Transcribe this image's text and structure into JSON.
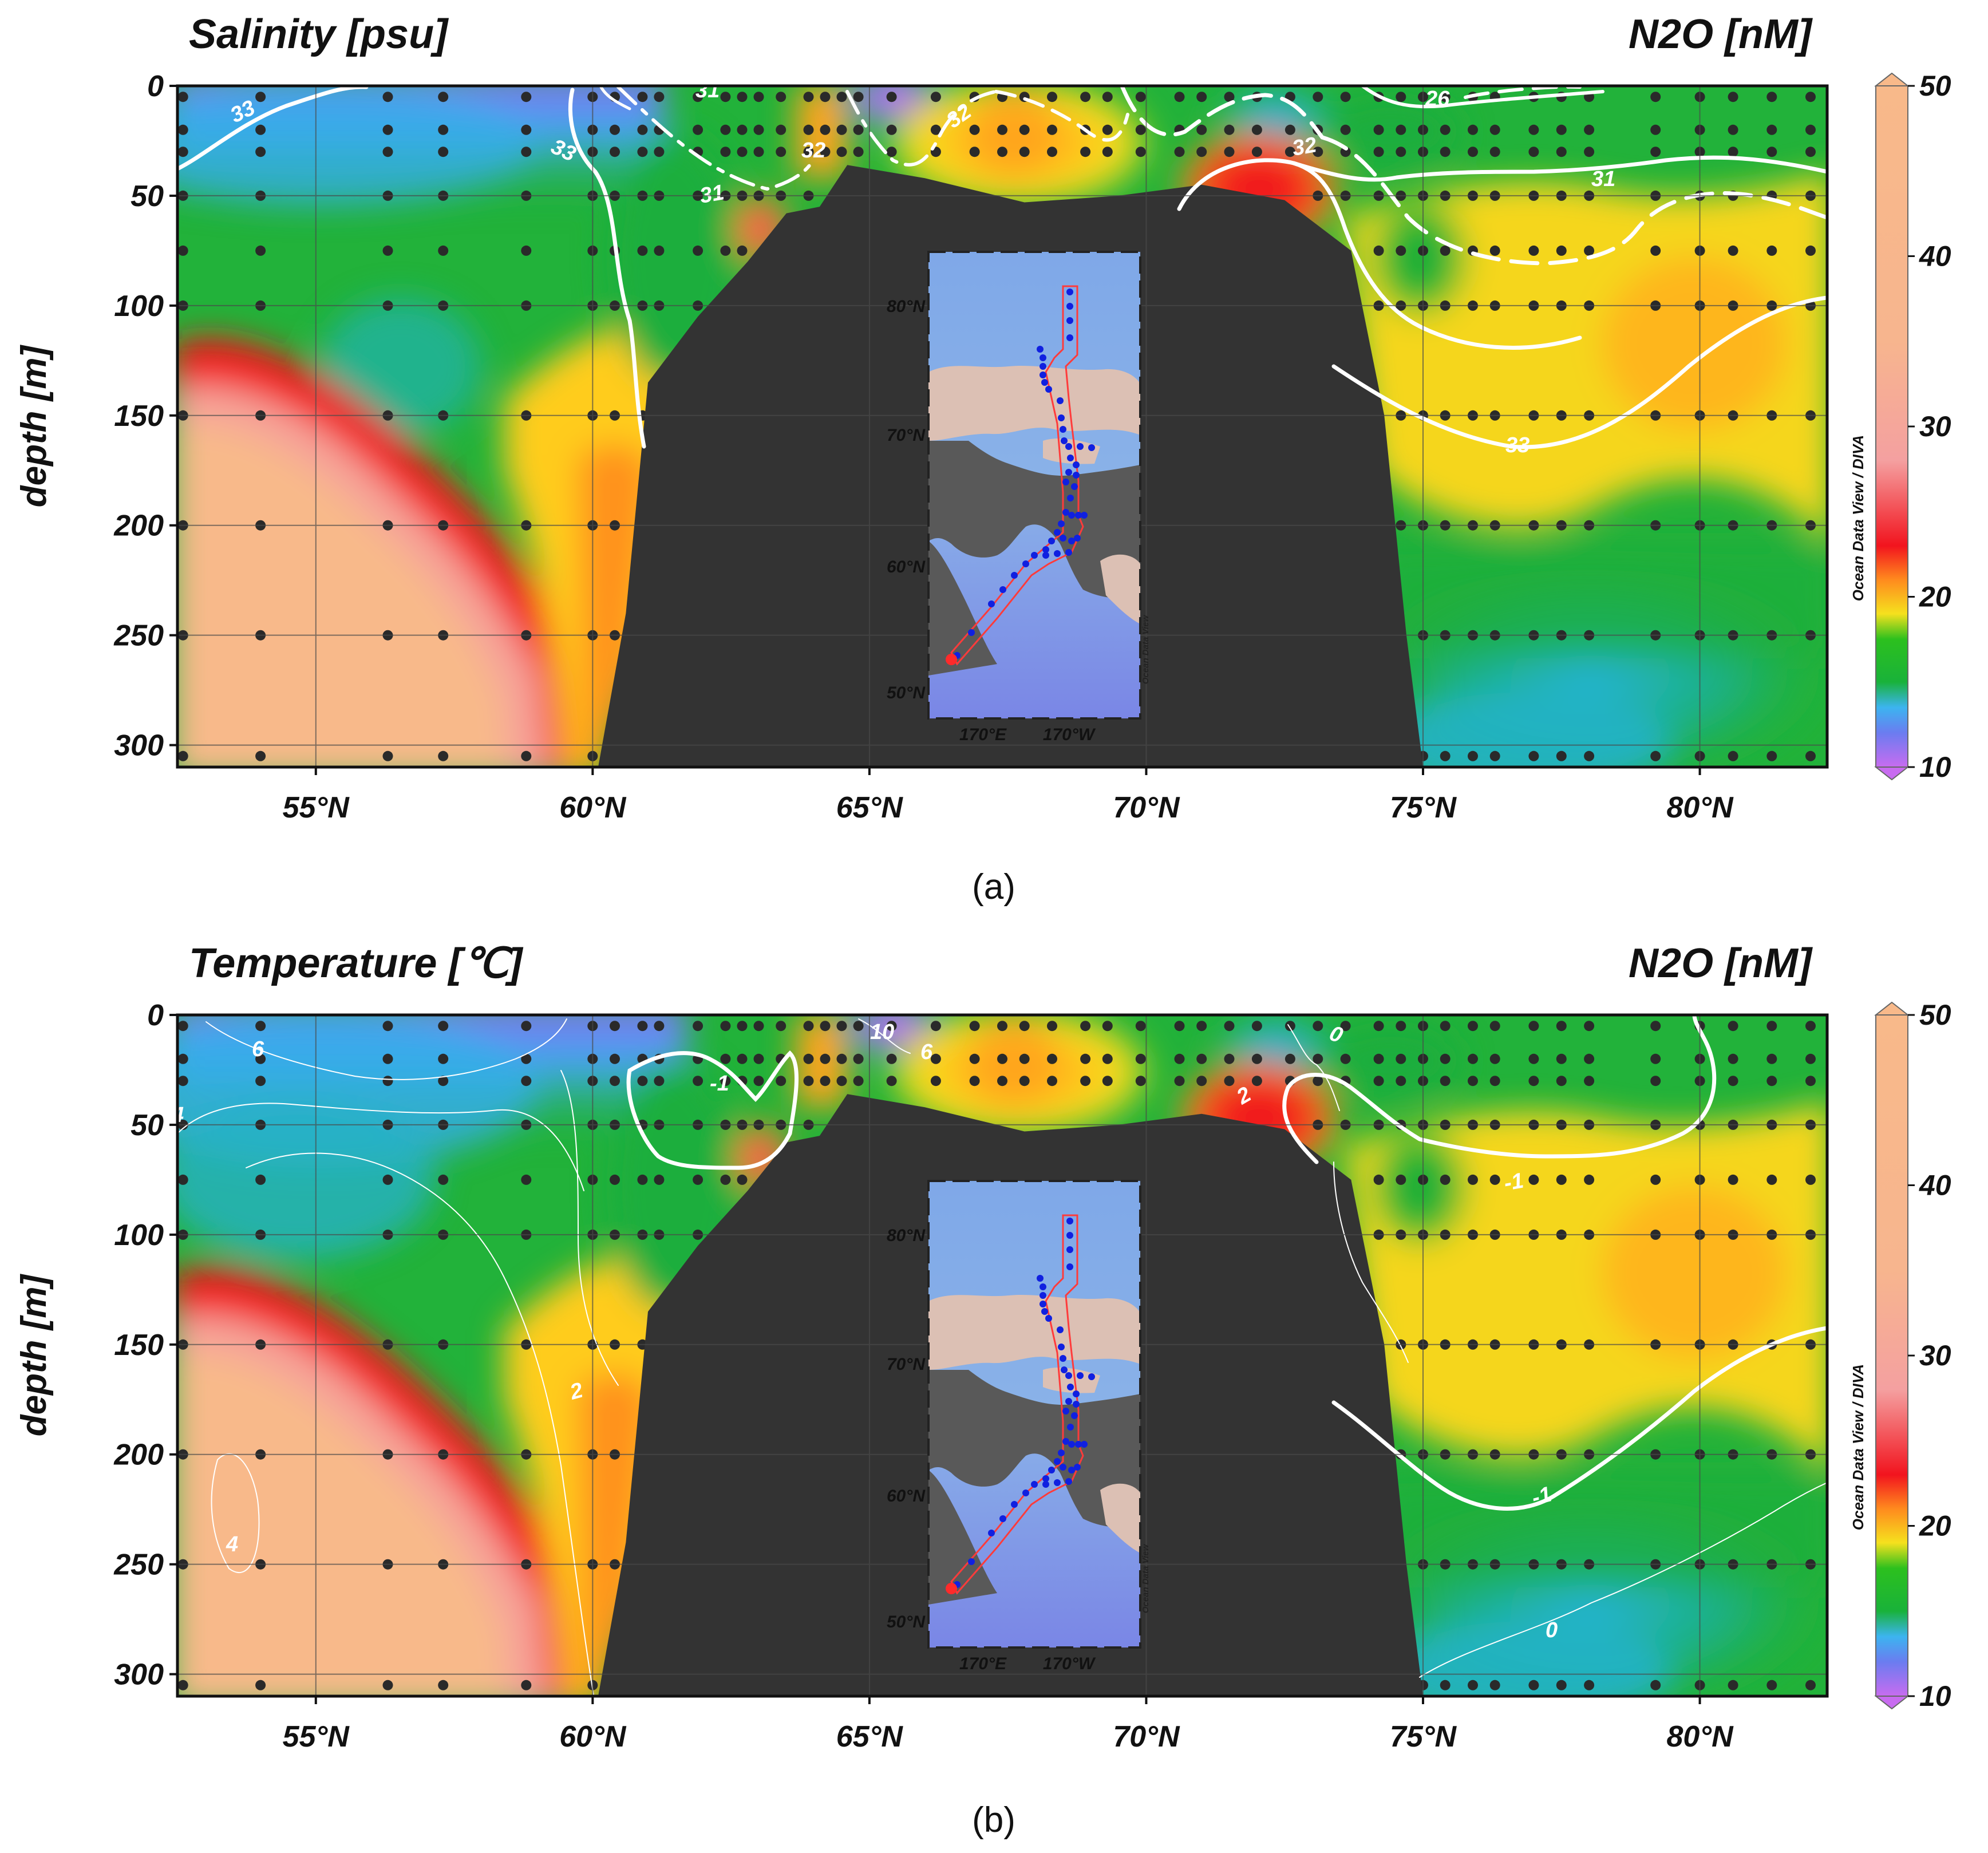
{
  "colorbar": {
    "ticks": [
      "10",
      "20",
      "30",
      "40",
      "50"
    ],
    "credit": "Ocean Data View / DIVA",
    "stops": [
      {
        "value": 10,
        "color": "#c86cf0"
      },
      {
        "value": 12,
        "color": "#6b7cf0"
      },
      {
        "value": 13.5,
        "color": "#3cb4f0"
      },
      {
        "value": 15,
        "color": "#19b23a"
      },
      {
        "value": 17.5,
        "color": "#2cc01e"
      },
      {
        "value": 19,
        "color": "#f5e11e"
      },
      {
        "value": 21,
        "color": "#ff8a1e"
      },
      {
        "value": 23,
        "color": "#f2141e"
      },
      {
        "value": 28,
        "color": "#f4a0a0"
      },
      {
        "value": 35,
        "color": "#f7b58e"
      },
      {
        "value": 50,
        "color": "#f8b98a"
      }
    ]
  },
  "inset": {
    "lat_ticks": [
      "80°N",
      "70°N",
      "60°N",
      "50°N"
    ],
    "lon_ticks": [
      "170°E",
      "170°W"
    ],
    "credit": "Ocean Data View"
  },
  "panels": [
    {
      "id": "a",
      "panel_label": "(a)",
      "title_left": "Salinity [psu]",
      "title_right": "N2O [nM]",
      "ylabel": "depth [m]",
      "contour_labels": [
        "33",
        "33",
        "31",
        "32",
        "31",
        "32",
        "32",
        "26",
        "32",
        "31",
        "33"
      ]
    },
    {
      "id": "b",
      "panel_label": "(b)",
      "title_left": "Temperature [℃]",
      "title_right": "N2O [nM]",
      "ylabel": "depth [m]",
      "contour_labels": [
        "6",
        "4",
        "-1",
        "10",
        "6",
        "0",
        "2",
        "2",
        "4",
        "-1",
        "-1",
        "0"
      ]
    }
  ],
  "chart_data": [
    {
      "type": "heatmap",
      "title": "Salinity [psu]",
      "title_right": "N2O [nM]",
      "xlabel": "",
      "ylabel": "depth [m]",
      "x_ticks": [
        "55°N",
        "60°N",
        "65°N",
        "70°N",
        "75°N",
        "80°N"
      ],
      "y_ticks": [
        "0",
        "50",
        "100",
        "150",
        "200",
        "250",
        "300"
      ],
      "xlim": [
        52.5,
        82.3
      ],
      "ylim": [
        310,
        0
      ],
      "y_reversed": true,
      "colorbar": {
        "label": "N2O [nM]",
        "range": [
          10,
          50
        ],
        "ticks": [
          10,
          20,
          30,
          40,
          50
        ]
      },
      "overlay": {
        "variable": "Salinity [psu]",
        "contour_levels": [
          26,
          31,
          32,
          33
        ]
      },
      "bathymetry_depth": [
        [
          60.1,
          310
        ],
        [
          60.6,
          240
        ],
        [
          61.0,
          135
        ],
        [
          61.9,
          105
        ],
        [
          62.8,
          80
        ],
        [
          63.5,
          58
        ],
        [
          64.1,
          55
        ],
        [
          64.6,
          36
        ],
        [
          66.0,
          42
        ],
        [
          67.8,
          53
        ],
        [
          69.5,
          50
        ],
        [
          71.0,
          45
        ],
        [
          72.5,
          52
        ],
        [
          73.7,
          75
        ],
        [
          74.3,
          150
        ],
        [
          74.7,
          250
        ],
        [
          75.0,
          310
        ]
      ],
      "n2o_field": [
        {
          "lat": 52.6,
          "depths": [
            0,
            50,
            100,
            150,
            200,
            250,
            300
          ],
          "values": [
            11,
            14,
            18,
            36,
            36,
            36,
            36
          ]
        },
        {
          "lat": 54.5,
          "depths": [
            0,
            50,
            100,
            150,
            200,
            250,
            300
          ],
          "values": [
            12,
            14,
            16,
            28,
            36,
            36,
            36
          ]
        },
        {
          "lat": 56.5,
          "depths": [
            0,
            50,
            100,
            150,
            200,
            250,
            300
          ],
          "values": [
            12,
            15,
            15,
            18,
            25,
            36,
            36
          ]
        },
        {
          "lat": 58.5,
          "depths": [
            0,
            50,
            100,
            150,
            200,
            250,
            300
          ],
          "values": [
            13,
            16,
            17,
            18,
            19,
            26,
            36
          ]
        },
        {
          "lat": 60.0,
          "depths": [
            0,
            50,
            100,
            150,
            200,
            250,
            300
          ],
          "values": [
            15,
            17,
            18,
            19,
            19,
            20,
            24
          ]
        },
        {
          "lat": 62.0,
          "depths": [
            0,
            50,
            100
          ],
          "values": [
            16,
            17,
            18
          ]
        },
        {
          "lat": 63.0,
          "depths": [
            0,
            50,
            75
          ],
          "values": [
            17,
            24,
            30
          ]
        },
        {
          "lat": 64.4,
          "depths": [
            0,
            40
          ],
          "values": [
            20,
            22
          ]
        },
        {
          "lat": 65.0,
          "depths": [
            0,
            30
          ],
          "values": [
            10,
            17
          ]
        },
        {
          "lat": 67.5,
          "depths": [
            0,
            50
          ],
          "values": [
            18,
            19
          ]
        },
        {
          "lat": 69.5,
          "depths": [
            0,
            45
          ],
          "values": [
            16,
            17
          ]
        },
        {
          "lat": 71.3,
          "depths": [
            0,
            50
          ],
          "values": [
            14,
            25
          ]
        },
        {
          "lat": 74.0,
          "depths": [
            0,
            50,
            100,
            150,
            200,
            250,
            300
          ],
          "values": [
            16,
            17,
            18,
            16,
            15,
            15,
            14
          ]
        },
        {
          "lat": 76.0,
          "depths": [
            0,
            50,
            100,
            150,
            200,
            250,
            300
          ],
          "values": [
            16,
            16,
            18,
            18,
            16,
            15,
            14
          ]
        },
        {
          "lat": 80.3,
          "depths": [
            0,
            50,
            100,
            150,
            200,
            250,
            300
          ],
          "values": [
            16,
            17,
            20,
            18,
            16,
            16,
            14
          ]
        },
        {
          "lat": 82.2,
          "depths": [
            0,
            50,
            100,
            150,
            200,
            250,
            300
          ],
          "values": [
            16,
            16,
            18,
            17,
            16,
            15,
            14
          ]
        }
      ]
    },
    {
      "type": "heatmap",
      "title": "Temperature [℃]",
      "title_right": "N2O [nM]",
      "xlabel": "",
      "ylabel": "depth [m]",
      "x_ticks": [
        "55°N",
        "60°N",
        "65°N",
        "70°N",
        "75°N",
        "80°N"
      ],
      "y_ticks": [
        "0",
        "50",
        "100",
        "150",
        "200",
        "250",
        "300"
      ],
      "xlim": [
        52.5,
        82.3
      ],
      "ylim": [
        310,
        0
      ],
      "y_reversed": true,
      "colorbar": {
        "label": "N2O [nM]",
        "range": [
          10,
          50
        ],
        "ticks": [
          10,
          20,
          30,
          40,
          50
        ]
      },
      "overlay": {
        "variable": "Temperature [℃]",
        "contour_levels": [
          -1,
          0,
          2,
          4,
          6,
          10
        ]
      },
      "bathymetry_depth": [
        [
          60.1,
          310
        ],
        [
          60.6,
          240
        ],
        [
          61.0,
          135
        ],
        [
          61.9,
          105
        ],
        [
          62.8,
          80
        ],
        [
          63.5,
          58
        ],
        [
          64.1,
          55
        ],
        [
          64.6,
          36
        ],
        [
          66.0,
          42
        ],
        [
          67.8,
          53
        ],
        [
          69.5,
          50
        ],
        [
          71.0,
          45
        ],
        [
          72.5,
          52
        ],
        [
          73.7,
          75
        ],
        [
          74.3,
          150
        ],
        [
          74.7,
          250
        ],
        [
          75.0,
          310
        ]
      ],
      "n2o_field": "same N2O section as panel (a)"
    }
  ]
}
